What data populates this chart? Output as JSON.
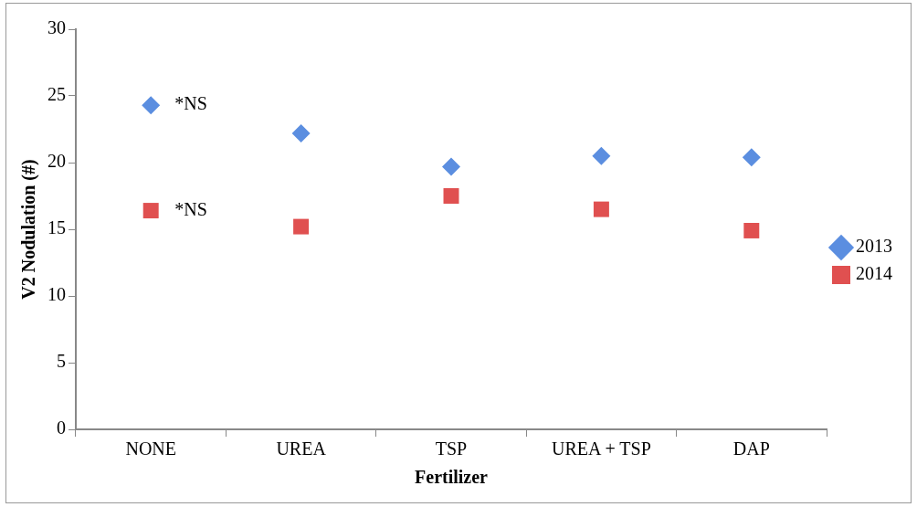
{
  "chart_data": {
    "type": "scatter",
    "xlabel": "Fertilizer",
    "ylabel": "V2 Nodulation (#)",
    "categories": [
      "NONE",
      "UREA",
      "TSP",
      "UREA + TSP",
      "DAP"
    ],
    "series": [
      {
        "name": "2013",
        "color": "#5b8ee0",
        "marker": "diamond",
        "values": [
          24.3,
          22.2,
          19.7,
          20.5,
          20.4
        ]
      },
      {
        "name": "2014",
        "color": "#e05050",
        "marker": "square",
        "values": [
          16.4,
          15.2,
          17.5,
          16.5,
          14.9
        ]
      }
    ],
    "annotations": [
      {
        "text": "*NS",
        "x": "NONE",
        "y": 24.3
      },
      {
        "text": "*NS",
        "x": "NONE",
        "y": 16.4
      }
    ],
    "ylim": [
      0,
      30
    ],
    "yticks": [
      0,
      5,
      10,
      15,
      20,
      25,
      30
    ],
    "grid": false,
    "legend": "right"
  }
}
